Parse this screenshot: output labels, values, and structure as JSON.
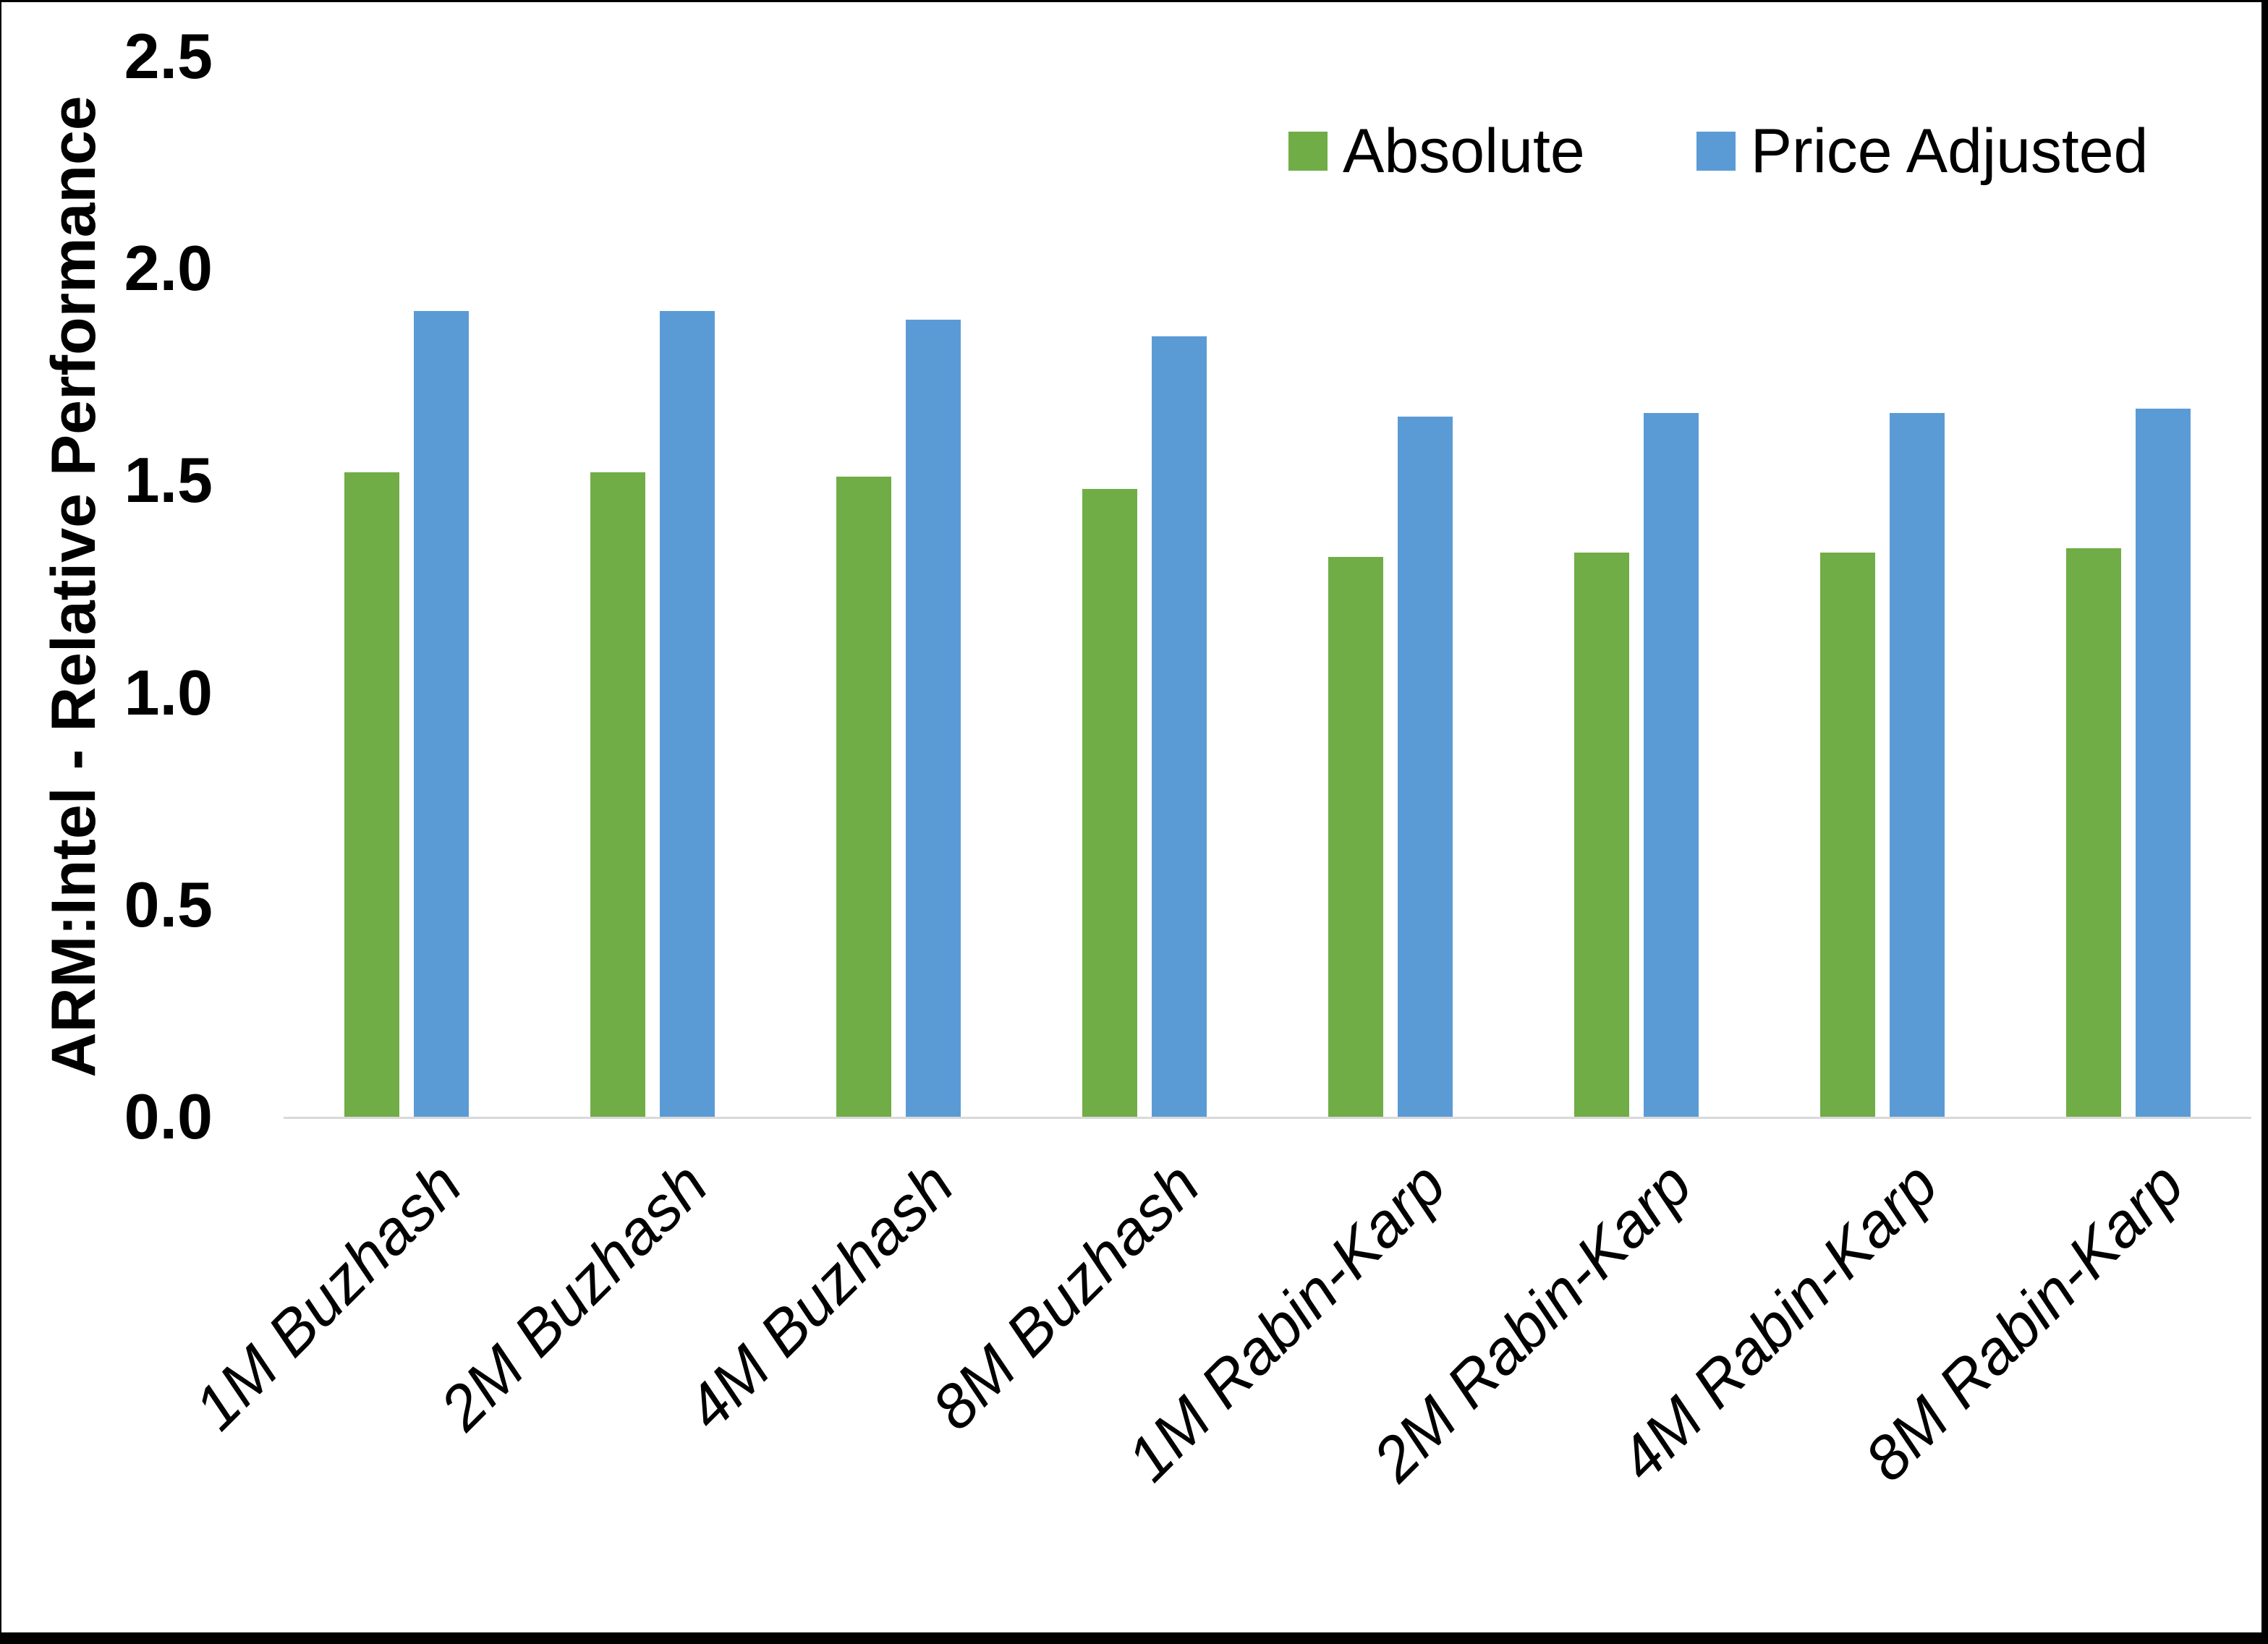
{
  "chart_data": {
    "type": "bar",
    "title": "",
    "ylabel": "ARM:Intel - Relative Performance",
    "xlabel": "",
    "ylim": [
      0,
      2.5
    ],
    "ytick_step": 0.5,
    "yticks": [
      "2.5",
      "2.0",
      "1.5",
      "1.0",
      "0.5",
      "0.0"
    ],
    "grid": false,
    "legend_position": "top-right",
    "categories": [
      "1M Buzhash",
      "2M Buzhash",
      "4M Buzhash",
      "8M Buzhash",
      "1M Rabin-Karp",
      "2M Rabin-Karp",
      "4M Rabin-Karp",
      "8M Rabin-Karp"
    ],
    "series": [
      {
        "name": "Absolute",
        "color": "#70AD47",
        "values": [
          1.52,
          1.52,
          1.51,
          1.48,
          1.32,
          1.33,
          1.33,
          1.34
        ]
      },
      {
        "name": "Price Adjusted",
        "color": "#5B9BD5",
        "values": [
          1.9,
          1.9,
          1.88,
          1.84,
          1.65,
          1.66,
          1.66,
          1.67
        ]
      }
    ],
    "colors": {
      "axis_line": "#D9D9D9",
      "text": "#000000",
      "background": "#FFFFFF",
      "frame_border": "#000000"
    }
  }
}
